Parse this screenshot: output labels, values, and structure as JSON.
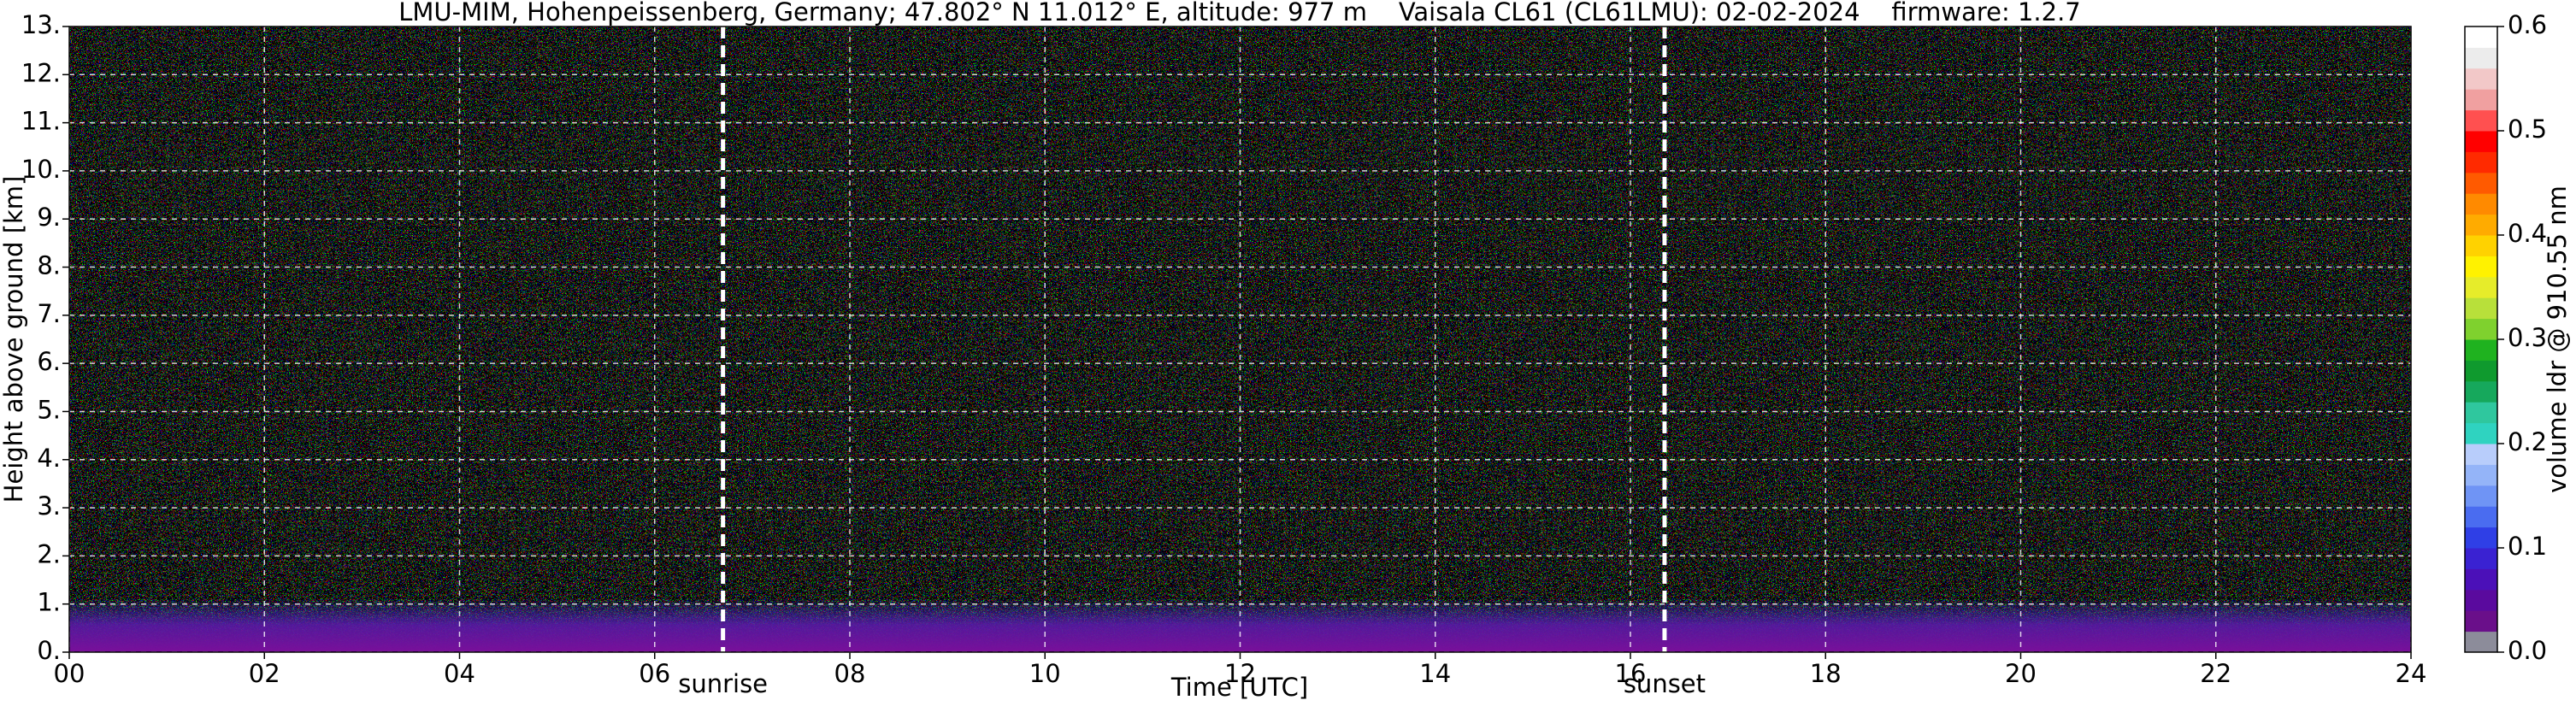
{
  "chart_data": {
    "type": "heatmap",
    "title": "LMU-MIM, Hohenpeissenberg, Germany; 47.802° N 11.012° E, altitude: 977 m    Vaisala CL61 (CL61LMU): 02-02-2024    firmware: 1.2.7",
    "xlabel": "Time [UTC]",
    "ylabel": "Height above ground [km]",
    "colorbar_label": "volume ldr @ 910.55 nm",
    "xlim": [
      0,
      24
    ],
    "xticks": [
      {
        "value": 0,
        "label": "00"
      },
      {
        "value": 2,
        "label": "02"
      },
      {
        "value": 4,
        "label": "04"
      },
      {
        "value": 6,
        "label": "06"
      },
      {
        "value": 8,
        "label": "08"
      },
      10,
      12,
      14,
      16,
      18,
      20,
      22,
      24
    ],
    "ylim": [
      0,
      13
    ],
    "yticks": [
      {
        "value": 0,
        "label": "0."
      },
      {
        "value": 1,
        "label": "1."
      },
      {
        "value": 2,
        "label": "2."
      },
      {
        "value": 3,
        "label": "3."
      },
      {
        "value": 4,
        "label": "4."
      },
      {
        "value": 5,
        "label": "5."
      },
      {
        "value": 6,
        "label": "6."
      },
      {
        "value": 7,
        "label": "7."
      },
      {
        "value": 8,
        "label": "8."
      },
      {
        "value": 9,
        "label": "9."
      },
      {
        "value": 10,
        "label": "10."
      },
      {
        "value": 11,
        "label": "11."
      },
      {
        "value": 12,
        "label": "12."
      },
      {
        "value": 13,
        "label": "13."
      }
    ],
    "clim": [
      0,
      0.6
    ],
    "cticks": [
      {
        "value": 0,
        "label": "0.0"
      },
      0.1,
      0.2,
      0.3,
      0.4,
      0.5,
      0.6
    ],
    "colormap": [
      "#8c8c9a",
      "#6a0f8a",
      "#5a0a9e",
      "#4b10b8",
      "#3a22d2",
      "#2f3fe6",
      "#4a6cf0",
      "#6f94f5",
      "#94b4f8",
      "#b8cdfb",
      "#2fd3c0",
      "#2fc79e",
      "#16a85c",
      "#0f9a2e",
      "#1fb21f",
      "#7fd12e",
      "#b8e03a",
      "#e6ec2a",
      "#fff200",
      "#ffd200",
      "#ffab00",
      "#ff8a00",
      "#ff5a00",
      "#ff2a00",
      "#ff0000",
      "#ff5050",
      "#f0a0a0",
      "#f2c8c8",
      "#ececec",
      "#ffffff"
    ],
    "grid": true,
    "annotations": [
      {
        "label": "sunrise",
        "x": 6.7
      },
      {
        "label": "sunset",
        "x": 16.35
      }
    ]
  }
}
